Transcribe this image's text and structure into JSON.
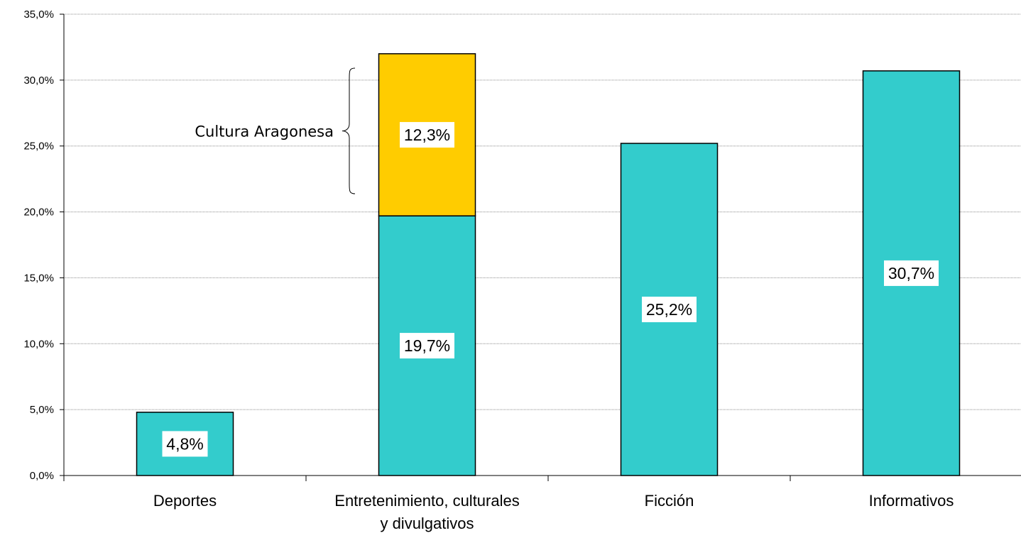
{
  "chart_data": {
    "type": "bar",
    "stacked": true,
    "title": "",
    "xlabel": "",
    "ylabel": "",
    "ylim": [
      0,
      35
    ],
    "yticks": [
      0,
      5,
      10,
      15,
      20,
      25,
      30,
      35
    ],
    "ytick_labels": [
      "0,0%",
      "5,0%",
      "10,0%",
      "15,0%",
      "20,0%",
      "25,0%",
      "30,0%",
      "35,0%"
    ],
    "grid": true,
    "legend": "none",
    "categories": [
      [
        "Deportes"
      ],
      [
        "Entretenimiento, culturales",
        "y divulgativos"
      ],
      [
        "Ficción"
      ],
      [
        "Informativos"
      ]
    ],
    "series": [
      {
        "color": "#33CCCC",
        "values": [
          4.8,
          19.7,
          25.2,
          30.7
        ],
        "labels": [
          "4,8%",
          "19,7%",
          "25,2%",
          "30,7%"
        ]
      },
      {
        "color": "#FFCC00",
        "values": [
          0,
          12.3,
          0,
          0
        ],
        "labels": [
          "",
          "12,3%",
          "",
          ""
        ]
      }
    ],
    "annotations": [
      {
        "text": "Cultura Aragonesa",
        "category_index": 1,
        "series_index": 1,
        "marker": "brace"
      }
    ]
  }
}
